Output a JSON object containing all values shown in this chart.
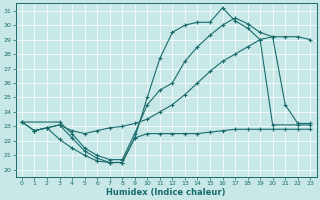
{
  "xlabel": "Humidex (Indice chaleur)",
  "bg_color": "#c8e8e8",
  "line_color": "#1a6b6b",
  "xlim": [
    -0.5,
    23.5
  ],
  "ylim": [
    19.5,
    31.5
  ],
  "yticks": [
    20,
    21,
    22,
    23,
    24,
    25,
    26,
    27,
    28,
    29,
    30,
    31
  ],
  "xticks": [
    0,
    1,
    2,
    3,
    4,
    5,
    6,
    7,
    8,
    9,
    10,
    11,
    12,
    13,
    14,
    15,
    16,
    17,
    18,
    19,
    20,
    21,
    22,
    23
  ],
  "line1_x": [
    0,
    1,
    2,
    3,
    4,
    5,
    6,
    7,
    8,
    9,
    10,
    11,
    12,
    13,
    14,
    15,
    16,
    17,
    18,
    19,
    20,
    22,
    23
  ],
  "line1_y": [
    23.3,
    22.7,
    22.9,
    23.1,
    22.2,
    21.3,
    20.8,
    20.5,
    20.5,
    22.2,
    25.0,
    27.7,
    29.5,
    30.0,
    30.2,
    30.2,
    31.2,
    30.3,
    29.8,
    29.0,
    23.1,
    23.1,
    23.1
  ],
  "line2_x": [
    0,
    3,
    4,
    5,
    6,
    7,
    8,
    9,
    10,
    11,
    12,
    13,
    14,
    15,
    16,
    17,
    18,
    19,
    20,
    21,
    22,
    23
  ],
  "line2_y": [
    23.3,
    23.3,
    22.5,
    21.5,
    21.0,
    20.7,
    20.7,
    22.5,
    24.5,
    25.5,
    26.0,
    27.5,
    28.5,
    29.3,
    30.0,
    30.5,
    30.1,
    29.5,
    29.2,
    24.5,
    23.2,
    23.2
  ],
  "line3_x": [
    0,
    1,
    2,
    3,
    4,
    5,
    6,
    7,
    8,
    9,
    10,
    11,
    12,
    13,
    14,
    15,
    16,
    17,
    18,
    19,
    20,
    21,
    22,
    23
  ],
  "line3_y": [
    23.3,
    22.7,
    22.9,
    23.1,
    22.7,
    22.5,
    22.7,
    22.9,
    23.0,
    23.2,
    23.5,
    24.0,
    24.5,
    25.2,
    26.0,
    26.8,
    27.5,
    28.0,
    28.5,
    29.0,
    29.2,
    29.2,
    29.2,
    29.0
  ],
  "line4_x": [
    1,
    2,
    3,
    4,
    5,
    6,
    7,
    8,
    9,
    10,
    11,
    12,
    13,
    14,
    15,
    16,
    17,
    18,
    19,
    20,
    21,
    22,
    23
  ],
  "line4_y": [
    22.7,
    22.9,
    22.1,
    21.5,
    21.0,
    20.6,
    20.5,
    20.5,
    22.2,
    22.5,
    22.5,
    22.5,
    22.5,
    22.5,
    22.6,
    22.7,
    22.8,
    22.8,
    22.8,
    22.8,
    22.8,
    22.8,
    22.8
  ]
}
